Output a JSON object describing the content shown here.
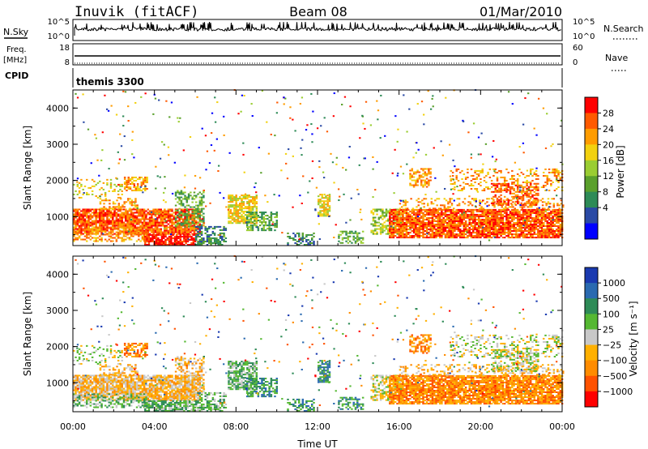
{
  "header": {
    "station": "Inuvik (fitACF)",
    "beam": "Beam 08",
    "date": "01/Mar/2010"
  },
  "left_labels": {
    "nsky": "N.Sky",
    "freq": "Freq.",
    "freq_unit": "[MHz]",
    "cpid": "CPID"
  },
  "right_labels": {
    "nsearch": "N.Search",
    "nave": "Nave"
  },
  "cpid_text": "themis 3300",
  "colors": {
    "power": [
      "#0000ff",
      "#2a4aa5",
      "#2e8b57",
      "#5aa02c",
      "#9acd32",
      "#f2d10f",
      "#ff9c00",
      "#ff5a00",
      "#ff0000"
    ],
    "velocity": [
      "#ff0000",
      "#ff5200",
      "#ff8c00",
      "#ffb000",
      "#c8c8c8",
      "#55b832",
      "#2e8b57",
      "#2a6ab0",
      "#1a3ab0"
    ]
  },
  "chart_data": [
    {
      "type": "line",
      "name": "N.Sky / N.Search",
      "left_ticks": [
        "10^5",
        "10^0"
      ],
      "right_ticks": [
        "10^5",
        "10^0"
      ]
    },
    {
      "type": "line",
      "name": "Freq / Nave",
      "left_ticks": [
        "18",
        "8"
      ],
      "right_ticks": [
        "60",
        "0"
      ],
      "freq_value": 10.5
    },
    {
      "type": "heatmap",
      "ylabel": "Slant Range [km]",
      "yticks": [
        1000,
        2000,
        3000,
        4000
      ],
      "ylim": [
        200,
        4500
      ],
      "colorbar_label": "Power [dB]",
      "colorbar_ticks": [
        4,
        8,
        12,
        16,
        20,
        24,
        28
      ],
      "colorbar_range": [
        0,
        30
      ]
    },
    {
      "type": "heatmap",
      "ylabel": "Slant Range [km]",
      "yticks": [
        1000,
        2000,
        3000,
        4000
      ],
      "ylim": [
        200,
        4500
      ],
      "colorbar_label": "Velocity [m s⁻¹]",
      "colorbar_ticks": [
        "1000",
        "500",
        "100",
        "25",
        "−25",
        "−100",
        "−500",
        "−1000"
      ],
      "xlabel": "Time UT",
      "xticks": [
        "00:00",
        "04:00",
        "08:00",
        "12:00",
        "16:00",
        "20:00",
        "00:00"
      ],
      "xlim_hours": [
        0,
        24
      ]
    }
  ]
}
